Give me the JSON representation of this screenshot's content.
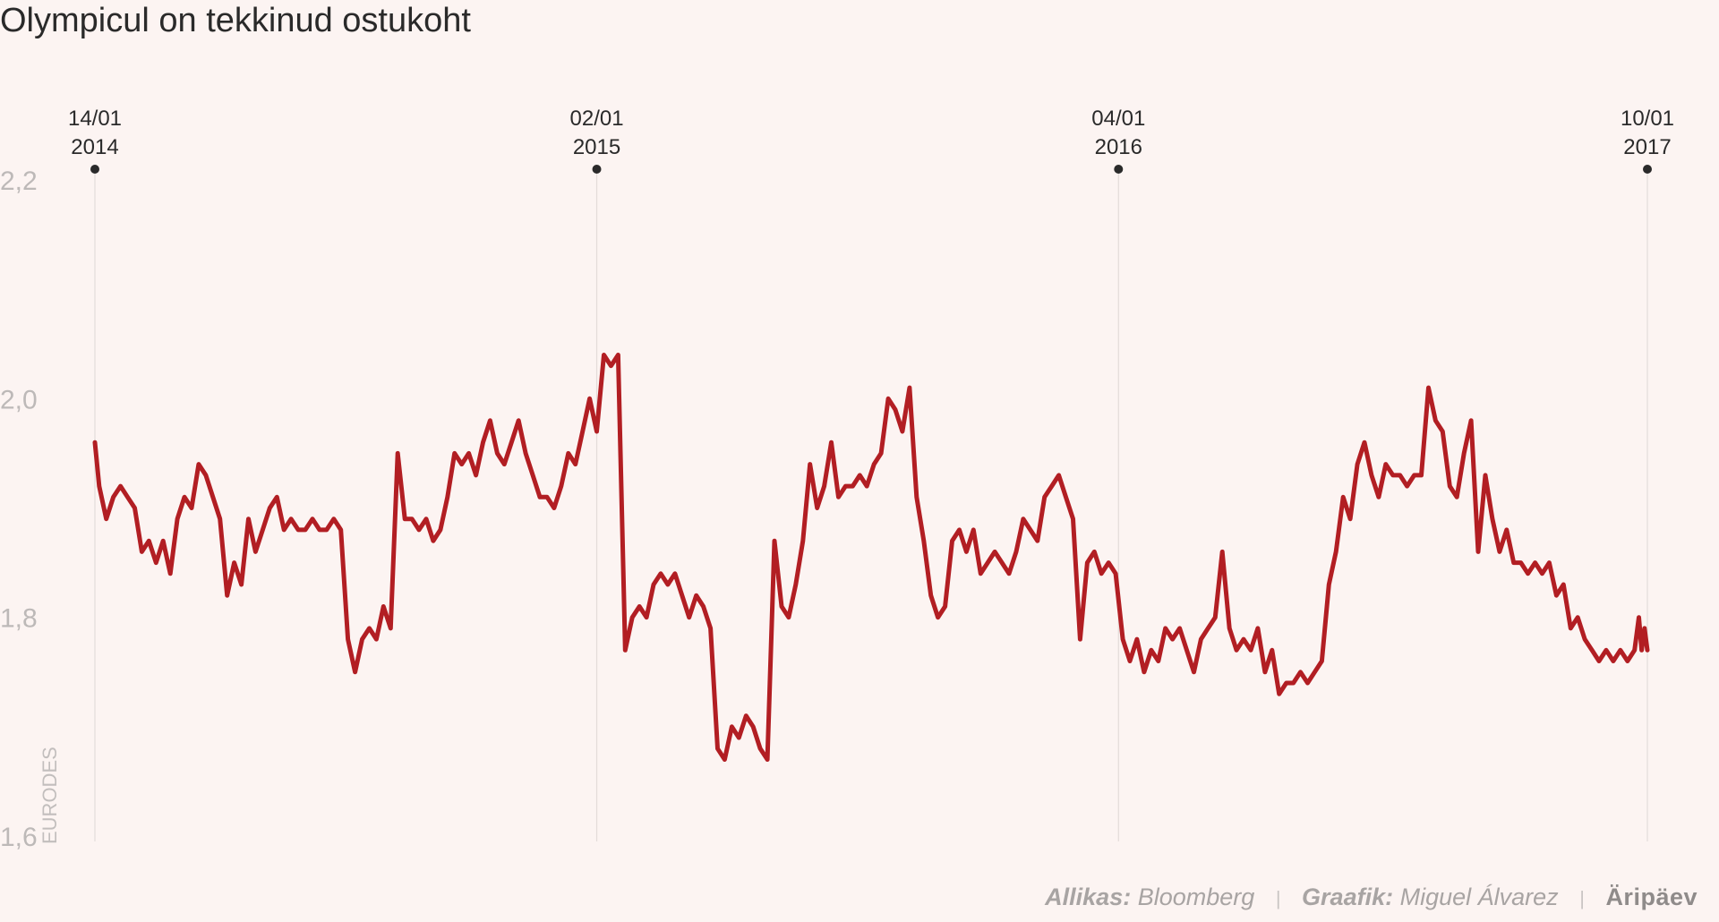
{
  "title": "Olympicul on tekkinud ostukoht",
  "chart_data": {
    "type": "line",
    "title": "Olympicul on tekkinud ostukoht",
    "ylabel": "EURODES",
    "xlabel": "",
    "ylim": [
      1.6,
      2.2
    ],
    "yticks": [
      "2,2",
      "2,0",
      "1,8",
      "1,6"
    ],
    "ytick_values": [
      2.2,
      2.0,
      1.8,
      1.6
    ],
    "grid": false,
    "markers": [
      {
        "label_line1": "14/01",
        "label_line2": "2014",
        "date": "2014-01-14"
      },
      {
        "label_line1": "02/01",
        "label_line2": "2015",
        "date": "2015-01-02"
      },
      {
        "label_line1": "04/01",
        "label_line2": "2016",
        "date": "2016-01-04"
      },
      {
        "label_line1": "10/01",
        "label_line2": "2017",
        "date": "2017-01-10"
      }
    ],
    "series": [
      {
        "color": "#b21e23",
        "points": [
          [
            "2014-01-14",
            1.96
          ],
          [
            "2014-01-17",
            1.92
          ],
          [
            "2014-01-22",
            1.89
          ],
          [
            "2014-01-27",
            1.91
          ],
          [
            "2014-02-01",
            1.92
          ],
          [
            "2014-02-06",
            1.91
          ],
          [
            "2014-02-11",
            1.9
          ],
          [
            "2014-02-16",
            1.86
          ],
          [
            "2014-02-21",
            1.87
          ],
          [
            "2014-02-26",
            1.85
          ],
          [
            "2014-03-03",
            1.87
          ],
          [
            "2014-03-08",
            1.84
          ],
          [
            "2014-03-13",
            1.89
          ],
          [
            "2014-03-18",
            1.91
          ],
          [
            "2014-03-23",
            1.9
          ],
          [
            "2014-03-28",
            1.94
          ],
          [
            "2014-04-02",
            1.93
          ],
          [
            "2014-04-07",
            1.91
          ],
          [
            "2014-04-12",
            1.89
          ],
          [
            "2014-04-17",
            1.82
          ],
          [
            "2014-04-22",
            1.85
          ],
          [
            "2014-04-27",
            1.83
          ],
          [
            "2014-05-02",
            1.89
          ],
          [
            "2014-05-07",
            1.86
          ],
          [
            "2014-05-12",
            1.88
          ],
          [
            "2014-05-17",
            1.9
          ],
          [
            "2014-05-22",
            1.91
          ],
          [
            "2014-05-27",
            1.88
          ],
          [
            "2014-06-01",
            1.89
          ],
          [
            "2014-06-06",
            1.88
          ],
          [
            "2014-06-11",
            1.88
          ],
          [
            "2014-06-16",
            1.89
          ],
          [
            "2014-06-21",
            1.88
          ],
          [
            "2014-06-26",
            1.88
          ],
          [
            "2014-07-01",
            1.89
          ],
          [
            "2014-07-06",
            1.88
          ],
          [
            "2014-07-11",
            1.78
          ],
          [
            "2014-07-16",
            1.75
          ],
          [
            "2014-07-21",
            1.78
          ],
          [
            "2014-07-26",
            1.79
          ],
          [
            "2014-07-31",
            1.78
          ],
          [
            "2014-08-05",
            1.81
          ],
          [
            "2014-08-10",
            1.79
          ],
          [
            "2014-08-15",
            1.95
          ],
          [
            "2014-08-20",
            1.89
          ],
          [
            "2014-08-25",
            1.89
          ],
          [
            "2014-08-30",
            1.88
          ],
          [
            "2014-09-04",
            1.89
          ],
          [
            "2014-09-09",
            1.87
          ],
          [
            "2014-09-14",
            1.88
          ],
          [
            "2014-09-19",
            1.91
          ],
          [
            "2014-09-24",
            1.95
          ],
          [
            "2014-09-29",
            1.94
          ],
          [
            "2014-10-04",
            1.95
          ],
          [
            "2014-10-09",
            1.93
          ],
          [
            "2014-10-14",
            1.96
          ],
          [
            "2014-10-19",
            1.98
          ],
          [
            "2014-10-24",
            1.95
          ],
          [
            "2014-10-29",
            1.94
          ],
          [
            "2014-11-03",
            1.96
          ],
          [
            "2014-11-08",
            1.98
          ],
          [
            "2014-11-13",
            1.95
          ],
          [
            "2014-11-18",
            1.93
          ],
          [
            "2014-11-23",
            1.91
          ],
          [
            "2014-11-28",
            1.91
          ],
          [
            "2014-12-03",
            1.9
          ],
          [
            "2014-12-08",
            1.92
          ],
          [
            "2014-12-13",
            1.95
          ],
          [
            "2014-12-18",
            1.94
          ],
          [
            "2014-12-23",
            1.97
          ],
          [
            "2014-12-28",
            2.0
          ],
          [
            "2015-01-02",
            1.97
          ],
          [
            "2015-01-07",
            2.04
          ],
          [
            "2015-01-12",
            2.03
          ],
          [
            "2015-01-17",
            2.04
          ],
          [
            "2015-01-22",
            1.77
          ],
          [
            "2015-01-27",
            1.8
          ],
          [
            "2015-02-01",
            1.81
          ],
          [
            "2015-02-06",
            1.8
          ],
          [
            "2015-02-11",
            1.83
          ],
          [
            "2015-02-16",
            1.84
          ],
          [
            "2015-02-21",
            1.83
          ],
          [
            "2015-02-26",
            1.84
          ],
          [
            "2015-03-03",
            1.82
          ],
          [
            "2015-03-08",
            1.8
          ],
          [
            "2015-03-13",
            1.82
          ],
          [
            "2015-03-18",
            1.81
          ],
          [
            "2015-03-23",
            1.79
          ],
          [
            "2015-03-28",
            1.68
          ],
          [
            "2015-04-02",
            1.67
          ],
          [
            "2015-04-07",
            1.7
          ],
          [
            "2015-04-12",
            1.69
          ],
          [
            "2015-04-17",
            1.71
          ],
          [
            "2015-04-22",
            1.7
          ],
          [
            "2015-04-27",
            1.68
          ],
          [
            "2015-05-02",
            1.67
          ],
          [
            "2015-05-07",
            1.87
          ],
          [
            "2015-05-12",
            1.81
          ],
          [
            "2015-05-17",
            1.8
          ],
          [
            "2015-05-22",
            1.83
          ],
          [
            "2015-05-27",
            1.87
          ],
          [
            "2015-06-01",
            1.94
          ],
          [
            "2015-06-06",
            1.9
          ],
          [
            "2015-06-11",
            1.92
          ],
          [
            "2015-06-16",
            1.96
          ],
          [
            "2015-06-21",
            1.91
          ],
          [
            "2015-06-26",
            1.92
          ],
          [
            "2015-07-01",
            1.92
          ],
          [
            "2015-07-06",
            1.93
          ],
          [
            "2015-07-11",
            1.92
          ],
          [
            "2015-07-16",
            1.94
          ],
          [
            "2015-07-21",
            1.95
          ],
          [
            "2015-07-26",
            2.0
          ],
          [
            "2015-07-31",
            1.99
          ],
          [
            "2015-08-05",
            1.97
          ],
          [
            "2015-08-10",
            2.01
          ],
          [
            "2015-08-15",
            1.91
          ],
          [
            "2015-08-20",
            1.87
          ],
          [
            "2015-08-25",
            1.82
          ],
          [
            "2015-08-30",
            1.8
          ],
          [
            "2015-09-04",
            1.81
          ],
          [
            "2015-09-09",
            1.87
          ],
          [
            "2015-09-14",
            1.88
          ],
          [
            "2015-09-19",
            1.86
          ],
          [
            "2015-09-24",
            1.88
          ],
          [
            "2015-09-29",
            1.84
          ],
          [
            "2015-10-04",
            1.85
          ],
          [
            "2015-10-09",
            1.86
          ],
          [
            "2015-10-14",
            1.85
          ],
          [
            "2015-10-19",
            1.84
          ],
          [
            "2015-10-24",
            1.86
          ],
          [
            "2015-10-29",
            1.89
          ],
          [
            "2015-11-03",
            1.88
          ],
          [
            "2015-11-08",
            1.87
          ],
          [
            "2015-11-13",
            1.91
          ],
          [
            "2015-11-18",
            1.92
          ],
          [
            "2015-11-23",
            1.93
          ],
          [
            "2015-11-28",
            1.91
          ],
          [
            "2015-12-03",
            1.89
          ],
          [
            "2015-12-08",
            1.78
          ],
          [
            "2015-12-13",
            1.85
          ],
          [
            "2015-12-18",
            1.86
          ],
          [
            "2015-12-23",
            1.84
          ],
          [
            "2015-12-28",
            1.85
          ],
          [
            "2016-01-02",
            1.84
          ],
          [
            "2016-01-07",
            1.78
          ],
          [
            "2016-01-12",
            1.76
          ],
          [
            "2016-01-17",
            1.78
          ],
          [
            "2016-01-22",
            1.75
          ],
          [
            "2016-01-27",
            1.77
          ],
          [
            "2016-02-01",
            1.76
          ],
          [
            "2016-02-06",
            1.79
          ],
          [
            "2016-02-11",
            1.78
          ],
          [
            "2016-02-16",
            1.79
          ],
          [
            "2016-02-21",
            1.77
          ],
          [
            "2016-02-26",
            1.75
          ],
          [
            "2016-03-02",
            1.78
          ],
          [
            "2016-03-07",
            1.79
          ],
          [
            "2016-03-12",
            1.8
          ],
          [
            "2016-03-17",
            1.86
          ],
          [
            "2016-03-22",
            1.79
          ],
          [
            "2016-03-27",
            1.77
          ],
          [
            "2016-04-01",
            1.78
          ],
          [
            "2016-04-06",
            1.77
          ],
          [
            "2016-04-11",
            1.79
          ],
          [
            "2016-04-16",
            1.75
          ],
          [
            "2016-04-21",
            1.77
          ],
          [
            "2016-04-26",
            1.73
          ],
          [
            "2016-05-01",
            1.74
          ],
          [
            "2016-05-06",
            1.74
          ],
          [
            "2016-05-11",
            1.75
          ],
          [
            "2016-05-16",
            1.74
          ],
          [
            "2016-05-21",
            1.75
          ],
          [
            "2016-05-26",
            1.76
          ],
          [
            "2016-05-31",
            1.83
          ],
          [
            "2016-06-05",
            1.86
          ],
          [
            "2016-06-10",
            1.91
          ],
          [
            "2016-06-15",
            1.89
          ],
          [
            "2016-06-20",
            1.94
          ],
          [
            "2016-06-25",
            1.96
          ],
          [
            "2016-06-30",
            1.93
          ],
          [
            "2016-07-05",
            1.91
          ],
          [
            "2016-07-10",
            1.94
          ],
          [
            "2016-07-15",
            1.93
          ],
          [
            "2016-07-20",
            1.93
          ],
          [
            "2016-07-25",
            1.92
          ],
          [
            "2016-07-30",
            1.93
          ],
          [
            "2016-08-04",
            1.93
          ],
          [
            "2016-08-09",
            2.01
          ],
          [
            "2016-08-14",
            1.98
          ],
          [
            "2016-08-19",
            1.97
          ],
          [
            "2016-08-24",
            1.92
          ],
          [
            "2016-08-29",
            1.91
          ],
          [
            "2016-09-03",
            1.95
          ],
          [
            "2016-09-08",
            1.98
          ],
          [
            "2016-09-13",
            1.86
          ],
          [
            "2016-09-18",
            1.93
          ],
          [
            "2016-09-23",
            1.89
          ],
          [
            "2016-09-28",
            1.86
          ],
          [
            "2016-10-03",
            1.88
          ],
          [
            "2016-10-08",
            1.85
          ],
          [
            "2016-10-13",
            1.85
          ],
          [
            "2016-10-18",
            1.84
          ],
          [
            "2016-10-23",
            1.85
          ],
          [
            "2016-10-28",
            1.84
          ],
          [
            "2016-11-02",
            1.85
          ],
          [
            "2016-11-07",
            1.82
          ],
          [
            "2016-11-12",
            1.83
          ],
          [
            "2016-11-17",
            1.79
          ],
          [
            "2016-11-22",
            1.8
          ],
          [
            "2016-11-27",
            1.78
          ],
          [
            "2016-12-02",
            1.77
          ],
          [
            "2016-12-07",
            1.76
          ],
          [
            "2016-12-12",
            1.77
          ],
          [
            "2016-12-17",
            1.76
          ],
          [
            "2016-12-22",
            1.77
          ],
          [
            "2016-12-27",
            1.76
          ],
          [
            "2017-01-01",
            1.77
          ],
          [
            "2017-01-04",
            1.8
          ],
          [
            "2017-01-06",
            1.77
          ],
          [
            "2017-01-08",
            1.79
          ],
          [
            "2017-01-10",
            1.77
          ]
        ]
      }
    ]
  },
  "footer": {
    "source_label": "Allikas:",
    "source_value": "Bloomberg",
    "separator": "|",
    "credit_label": "Graafik:",
    "credit_value": "Miguel Álvarez",
    "brand": "Äripäev"
  },
  "colors": {
    "background": "#fcf4f2",
    "line": "#b21e23",
    "axis_text": "#bdb9b8",
    "marker_line": "#e3dcda",
    "marker_dot": "#2a2a2a"
  }
}
